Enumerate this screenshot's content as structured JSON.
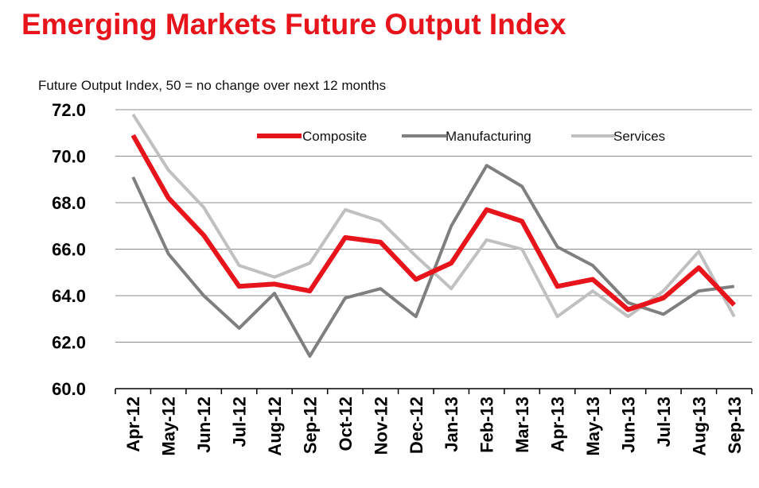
{
  "chart_data": {
    "type": "line",
    "title": "Emerging Markets Future Output Index",
    "subtitle": "Future Output Index, 50 = no change over next 12 months",
    "categories": [
      "Apr-12",
      "May-12",
      "Jun-12",
      "Jul-12",
      "Aug-12",
      "Sep-12",
      "Oct-12",
      "Nov-12",
      "Dec-12",
      "Jan-13",
      "Feb-13",
      "Mar-13",
      "Apr-13",
      "May-13",
      "Jun-13",
      "Jul-13",
      "Aug-13",
      "Sep-13"
    ],
    "ylim": [
      60,
      72
    ],
    "yticks": [
      "60.0",
      "62.0",
      "64.0",
      "66.0",
      "68.0",
      "70.0",
      "72.0"
    ],
    "grid": true,
    "legend_position": "top-center",
    "series": [
      {
        "name": "Composite",
        "color": "#e8141b",
        "values": [
          70.9,
          68.2,
          66.6,
          64.4,
          64.5,
          64.2,
          66.5,
          66.3,
          64.7,
          65.4,
          67.7,
          67.2,
          64.4,
          64.7,
          63.4,
          63.9,
          65.2,
          63.6
        ]
      },
      {
        "name": "Manufacturing",
        "color": "#7f7f7f",
        "values": [
          69.1,
          65.8,
          64.0,
          62.6,
          64.1,
          61.4,
          63.9,
          64.3,
          63.1,
          67.0,
          69.6,
          68.7,
          66.1,
          65.3,
          63.7,
          63.2,
          64.2,
          64.4
        ]
      },
      {
        "name": "Services",
        "color": "#c0c0c0",
        "values": [
          71.8,
          69.4,
          67.8,
          65.3,
          64.8,
          65.4,
          67.7,
          67.2,
          65.7,
          64.3,
          66.4,
          66.0,
          63.1,
          64.2,
          63.1,
          64.2,
          65.9,
          63.1
        ]
      }
    ]
  }
}
